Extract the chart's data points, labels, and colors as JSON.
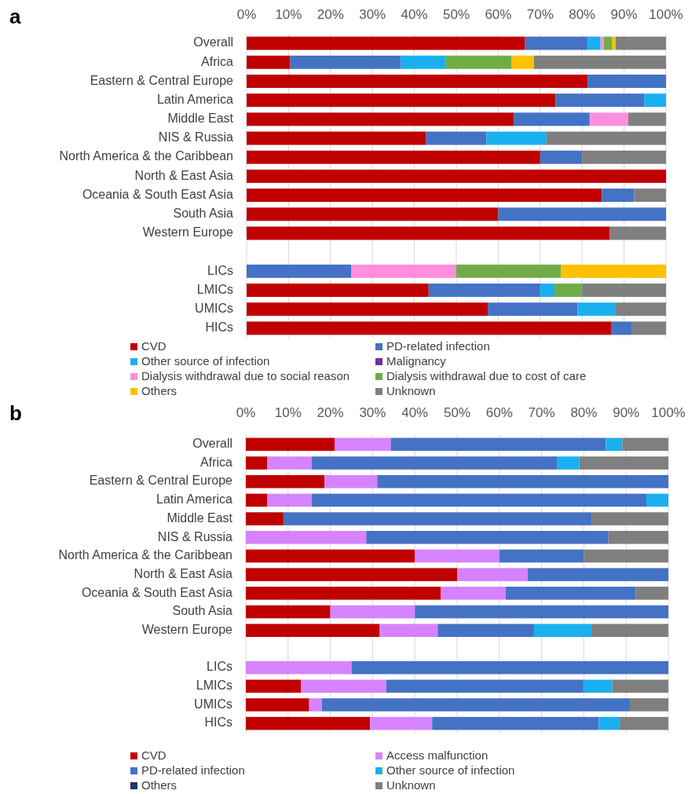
{
  "chart_data": [
    {
      "type": "bar",
      "title": "a",
      "orientation": "horizontal",
      "stacked": true,
      "grid": "x",
      "legend": "bottom",
      "categories": [
        "Overall",
        "Africa",
        "Eastern & Central Europe",
        "Latin America",
        "Middle East",
        "NIS & Russia",
        "North America & the Caribbean",
        "North & East Asia",
        "Oceania & South East Asia",
        "South Asia",
        "Western Europe",
        null,
        "LICs",
        "LMICs",
        "UMICs",
        "HICs"
      ],
      "xlim": [
        0,
        100
      ],
      "xticks": [
        {
          "value": 0,
          "label": "0%"
        },
        {
          "value": 10,
          "label": "10%"
        },
        {
          "value": 20,
          "label": "20%"
        },
        {
          "value": 30,
          "label": "30%"
        },
        {
          "value": 40,
          "label": "40%"
        },
        {
          "value": 50,
          "label": "50%"
        },
        {
          "value": 60,
          "label": "60%"
        },
        {
          "value": 70,
          "label": "70%"
        },
        {
          "value": 80,
          "label": "80%"
        },
        {
          "value": 90,
          "label": "90%"
        },
        {
          "value": 100,
          "label": "100%"
        }
      ],
      "series": [
        {
          "name": "CVD",
          "color": "#c00000",
          "values": [
            66.4,
            10.4,
            81.3,
            73.7,
            63.7,
            42.8,
            70.0,
            100,
            84.7,
            60.0,
            86.5,
            null,
            0,
            43.4,
            57.5,
            86.9
          ]
        },
        {
          "name": "PD-related infection",
          "color": "#4472c4",
          "values": [
            14.9,
            26.4,
            18.7,
            21.1,
            18.1,
            14.4,
            10.0,
            0,
            7.7,
            40.0,
            0,
            null,
            25,
            26.6,
            21.4,
            5.0
          ]
        },
        {
          "name": "Other source of infection",
          "color": "#1ab0ef",
          "values": [
            3.1,
            10.6,
            0,
            5.2,
            0,
            14.3,
            0,
            0,
            0,
            0,
            0,
            null,
            0,
            3.4,
            9.1,
            0
          ]
        },
        {
          "name": "Malignancy",
          "color": "#7030a0",
          "values": [
            0,
            0,
            0,
            0,
            0,
            0,
            0,
            0,
            0,
            0,
            0,
            null,
            0,
            0,
            0,
            0
          ]
        },
        {
          "name": "Dialysis withdrawal due to social reason",
          "color": "#ff8fdc",
          "values": [
            0.8,
            0,
            0,
            0,
            9.2,
            0,
            0,
            0,
            0,
            0,
            0,
            null,
            25,
            0,
            0,
            0
          ]
        },
        {
          "name": "Dialysis withdrawal due to cost of care",
          "color": "#70ad47",
          "values": [
            2.0,
            15.8,
            0,
            0,
            0,
            0,
            0,
            0,
            0,
            0,
            0,
            null,
            25,
            6.6,
            0,
            0
          ]
        },
        {
          "name": "Others",
          "color": "#ffc000",
          "values": [
            0.8,
            5.3,
            0,
            0,
            0,
            0,
            0,
            0,
            0,
            0,
            0,
            null,
            25,
            0,
            0,
            0
          ]
        },
        {
          "name": "Unknown",
          "color": "#7f7f7f",
          "values": [
            12.0,
            31.5,
            0,
            0,
            9.0,
            28.5,
            20.0,
            0,
            7.6,
            0,
            13.5,
            null,
            0,
            20.0,
            12.0,
            8.1
          ]
        }
      ]
    },
    {
      "type": "bar",
      "title": "b",
      "orientation": "horizontal",
      "stacked": true,
      "grid": "x",
      "legend": "bottom",
      "categories": [
        "Overall",
        "Africa",
        "Eastern & Central Europe",
        "Latin America",
        "Middle East",
        "NIS & Russia",
        "North America & the Caribbean",
        "North & East Asia",
        "Oceania & South East Asia",
        "South Asia",
        "Western Europe",
        null,
        "LICs",
        "LMICs",
        "UMICs",
        "HICs"
      ],
      "xlim": [
        0,
        100
      ],
      "xticks": [
        {
          "value": 0,
          "label": "0%"
        },
        {
          "value": 10,
          "label": "10%"
        },
        {
          "value": 20,
          "label": "20%"
        },
        {
          "value": 30,
          "label": "30%"
        },
        {
          "value": 40,
          "label": "40%"
        },
        {
          "value": 50,
          "label": "50%"
        },
        {
          "value": 60,
          "label": "60%"
        },
        {
          "value": 70,
          "label": "70%"
        },
        {
          "value": 80,
          "label": "80%"
        },
        {
          "value": 90,
          "label": "90%"
        },
        {
          "value": 100,
          "label": "100%"
        }
      ],
      "series": [
        {
          "name": "CVD",
          "color": "#c00000",
          "values": [
            21.0,
            5.1,
            18.6,
            5.1,
            8.9,
            0,
            40,
            50,
            46.1,
            20,
            31.7,
            null,
            0,
            13.1,
            15.0,
            29.4
          ]
        },
        {
          "name": "Access malfunction",
          "color": "#d783ff",
          "values": [
            13.3,
            10.5,
            12.5,
            10.5,
            0,
            28.5,
            20,
            16.7,
            15.4,
            20,
            13.7,
            null,
            25,
            20.1,
            3.0,
            14.7
          ]
        },
        {
          "name": "PD-related infection",
          "color": "#4472c4",
          "values": [
            50.9,
            58.0,
            68.9,
            79.2,
            72.9,
            57.3,
            20,
            33.3,
            30.8,
            60,
            22.8,
            null,
            75,
            46.7,
            72.9,
            39.4
          ]
        },
        {
          "name": "Other source of infection",
          "color": "#1ab0ef",
          "values": [
            3.9,
            5.3,
            0,
            5.2,
            0,
            0,
            0,
            0,
            0,
            0,
            13.6,
            null,
            0,
            6.8,
            0,
            5.0
          ]
        },
        {
          "name": "Others",
          "color": "#1f3864",
          "values": [
            0,
            0,
            0,
            0,
            0,
            0,
            0,
            0,
            0,
            0,
            0,
            null,
            0,
            0,
            0,
            0
          ]
        },
        {
          "name": "Unknown",
          "color": "#7f7f7f",
          "values": [
            10.9,
            21.1,
            0,
            0,
            18.2,
            14.2,
            20,
            0,
            7.7,
            0,
            18.2,
            null,
            0,
            13.3,
            9.1,
            11.5
          ]
        }
      ]
    }
  ]
}
